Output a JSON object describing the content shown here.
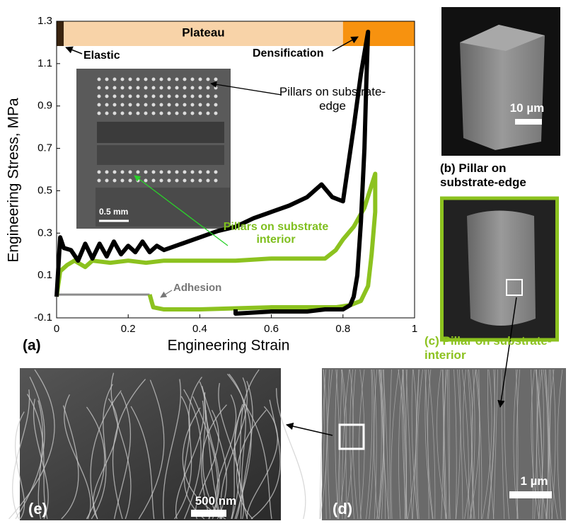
{
  "chart_data": {
    "type": "line",
    "panel_tag": "(a)",
    "xlabel": "Engineering Strain",
    "ylabel": "Engineering Stress, MPa",
    "xlim": [
      0,
      1
    ],
    "xticks": [
      0,
      0.2,
      0.4,
      0.6,
      0.8,
      1
    ],
    "ylim": [
      -0.1,
      1.3
    ],
    "yticks": [
      -0.1,
      0.1,
      0.3,
      0.5,
      0.7,
      0.9,
      1.1,
      1.3
    ],
    "regions": [
      {
        "label": "Elastic",
        "start": 0,
        "end": 0.02,
        "color": "#3a2410"
      },
      {
        "label": "Plateau",
        "start": 0.02,
        "end": 0.8,
        "color": "#f8d3a8"
      },
      {
        "label": "Densification",
        "start": 0.8,
        "end": 1,
        "color": "#f7920f"
      }
    ],
    "series": [
      {
        "name": "Pillars on substrate-edge",
        "color": "#000000",
        "x": [
          0,
          0.01,
          0.02,
          0.04,
          0.06,
          0.08,
          0.1,
          0.12,
          0.14,
          0.16,
          0.18,
          0.2,
          0.22,
          0.24,
          0.26,
          0.28,
          0.3,
          0.35,
          0.4,
          0.45,
          0.5,
          0.55,
          0.6,
          0.65,
          0.7,
          0.74,
          0.77,
          0.8,
          0.83,
          0.85,
          0.87,
          0.865,
          0.86,
          0.85,
          0.84,
          0.83,
          0.82,
          0.8,
          0.75,
          0.7,
          0.6,
          0.5,
          0.5
        ],
        "values": [
          0,
          0.28,
          0.23,
          0.22,
          0.17,
          0.25,
          0.18,
          0.25,
          0.19,
          0.26,
          0.2,
          0.24,
          0.21,
          0.26,
          0.21,
          0.24,
          0.22,
          0.25,
          0.28,
          0.31,
          0.33,
          0.37,
          0.4,
          0.43,
          0.47,
          0.53,
          0.47,
          0.45,
          0.8,
          1.05,
          1.25,
          1.0,
          0.7,
          0.35,
          0.1,
          0.0,
          -0.04,
          -0.06,
          -0.06,
          -0.07,
          -0.07,
          -0.08,
          -0.06
        ]
      },
      {
        "name": "Pillars on substrate interior",
        "color": "#8cc21f",
        "x": [
          0,
          0.01,
          0.03,
          0.05,
          0.08,
          0.1,
          0.15,
          0.2,
          0.25,
          0.3,
          0.4,
          0.5,
          0.6,
          0.7,
          0.75,
          0.78,
          0.8,
          0.83,
          0.86,
          0.89,
          0.89,
          0.88,
          0.87,
          0.85,
          0.82,
          0.78,
          0.7,
          0.6,
          0.5,
          0.4,
          0.3,
          0.27,
          0.26
        ],
        "values": [
          0,
          0.12,
          0.15,
          0.17,
          0.14,
          0.17,
          0.16,
          0.17,
          0.16,
          0.17,
          0.17,
          0.17,
          0.18,
          0.18,
          0.18,
          0.22,
          0.27,
          0.33,
          0.42,
          0.58,
          0.4,
          0.2,
          0.05,
          -0.02,
          -0.04,
          -0.05,
          -0.05,
          -0.05,
          -0.055,
          -0.06,
          -0.06,
          -0.05,
          0.01
        ]
      },
      {
        "name": "Adhesion",
        "color": "#8c8c8c",
        "x": [
          0,
          0.26
        ],
        "values": [
          0.01,
          0.01
        ]
      }
    ],
    "inset_scale": "0.5 mm"
  },
  "panels": {
    "b": {
      "caption": "(b) Pillar on substrate-edge",
      "scale": "10 µm"
    },
    "c": {
      "caption": "(c) Pillar on substrate-interior"
    },
    "d": {
      "tag": "(d)",
      "scale": "1 µm"
    },
    "e": {
      "tag": "(e)",
      "scale": "500 nm"
    }
  }
}
